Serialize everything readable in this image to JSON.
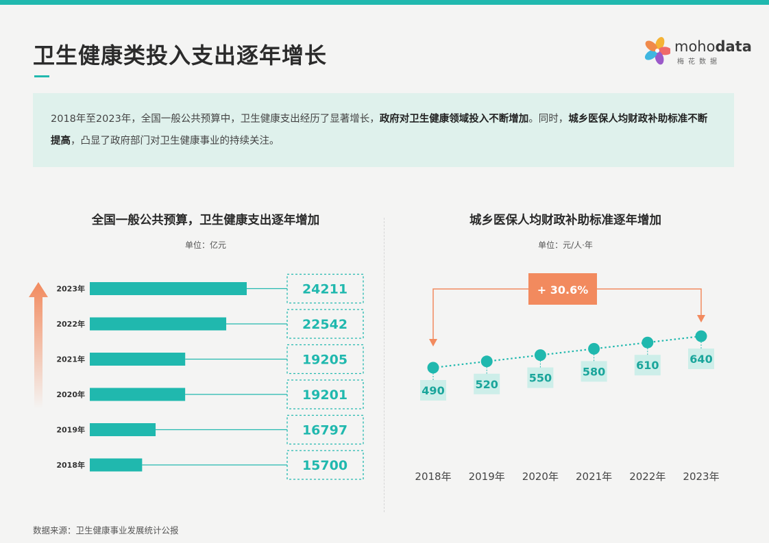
{
  "title": "卫生健康类投入支出逐年增长",
  "logo": {
    "name_light": "moho",
    "name_bold": "data",
    "sub": "梅花数据"
  },
  "summary": {
    "part1": "2018年至2023年，全国一般公共预算中，卫生健康支出经历了显著增长，",
    "bold1": "政府对卫生健康领域投入不断增加",
    "part2": "。同时，",
    "bold2": "城乡医保人均财政补助标准不断提高",
    "part3": "，凸显了政府部门对卫生健康事业的持续关注。"
  },
  "colors": {
    "teal": "#20b8ae",
    "orange": "#f28a5e",
    "light_teal": "#cdeee9",
    "bg": "#f4f4f3"
  },
  "chart_data": [
    {
      "type": "bar",
      "orientation": "horizontal",
      "title": "全国一般公共预算，卫生健康支出逐年增加",
      "unit": "单位：亿元",
      "categories": [
        "2023年",
        "2022年",
        "2021年",
        "2020年",
        "2019年",
        "2018年"
      ],
      "values": [
        24211,
        22542,
        19205,
        19201,
        16797,
        15700
      ],
      "labels": [
        "24211",
        "22542",
        "19205",
        "19201",
        "16797",
        "15700"
      ]
    },
    {
      "type": "line",
      "title": "城乡医保人均财政补助标准逐年增加",
      "unit": "单位：元/人·年",
      "x": [
        "2018年",
        "2019年",
        "2020年",
        "2021年",
        "2022年",
        "2023年"
      ],
      "values": [
        490,
        520,
        550,
        580,
        610,
        640
      ],
      "labels": [
        "490",
        "520",
        "550",
        "580",
        "610",
        "640"
      ],
      "annotation": "+ 30.6%"
    }
  ],
  "source": "数据来源：卫生健康事业发展统计公报"
}
